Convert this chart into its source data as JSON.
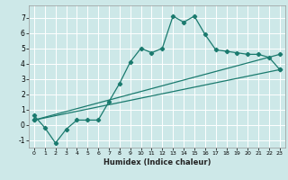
{
  "xlabel": "Humidex (Indice chaleur)",
  "bg_color": "#cde8e8",
  "line_color": "#1a7a6e",
  "grid_color": "#ffffff",
  "xlim": [
    -0.5,
    23.5
  ],
  "ylim": [
    -1.5,
    7.8
  ],
  "yticks": [
    -1,
    0,
    1,
    2,
    3,
    4,
    5,
    6,
    7
  ],
  "xticks": [
    0,
    1,
    2,
    3,
    4,
    5,
    6,
    7,
    8,
    9,
    10,
    11,
    12,
    13,
    14,
    15,
    16,
    17,
    18,
    19,
    20,
    21,
    22,
    23
  ],
  "line1_x": [
    0,
    1,
    2,
    3,
    4,
    5,
    6,
    7,
    8,
    9,
    10,
    11,
    12,
    13,
    14,
    15,
    16,
    17,
    18,
    19,
    20,
    21,
    22,
    23
  ],
  "line1_y": [
    0.6,
    -0.2,
    -1.2,
    -0.3,
    0.3,
    0.3,
    0.3,
    1.5,
    2.7,
    4.1,
    5.0,
    4.7,
    5.0,
    7.1,
    6.7,
    7.1,
    5.9,
    4.9,
    4.8,
    4.7,
    4.6,
    4.6,
    4.4,
    3.6
  ],
  "line2_x": [
    0,
    23
  ],
  "line2_y": [
    0.3,
    3.6
  ],
  "line3_x": [
    0,
    23
  ],
  "line3_y": [
    0.3,
    4.6
  ],
  "marker": "D",
  "markersize": 2.2,
  "linewidth": 0.9
}
